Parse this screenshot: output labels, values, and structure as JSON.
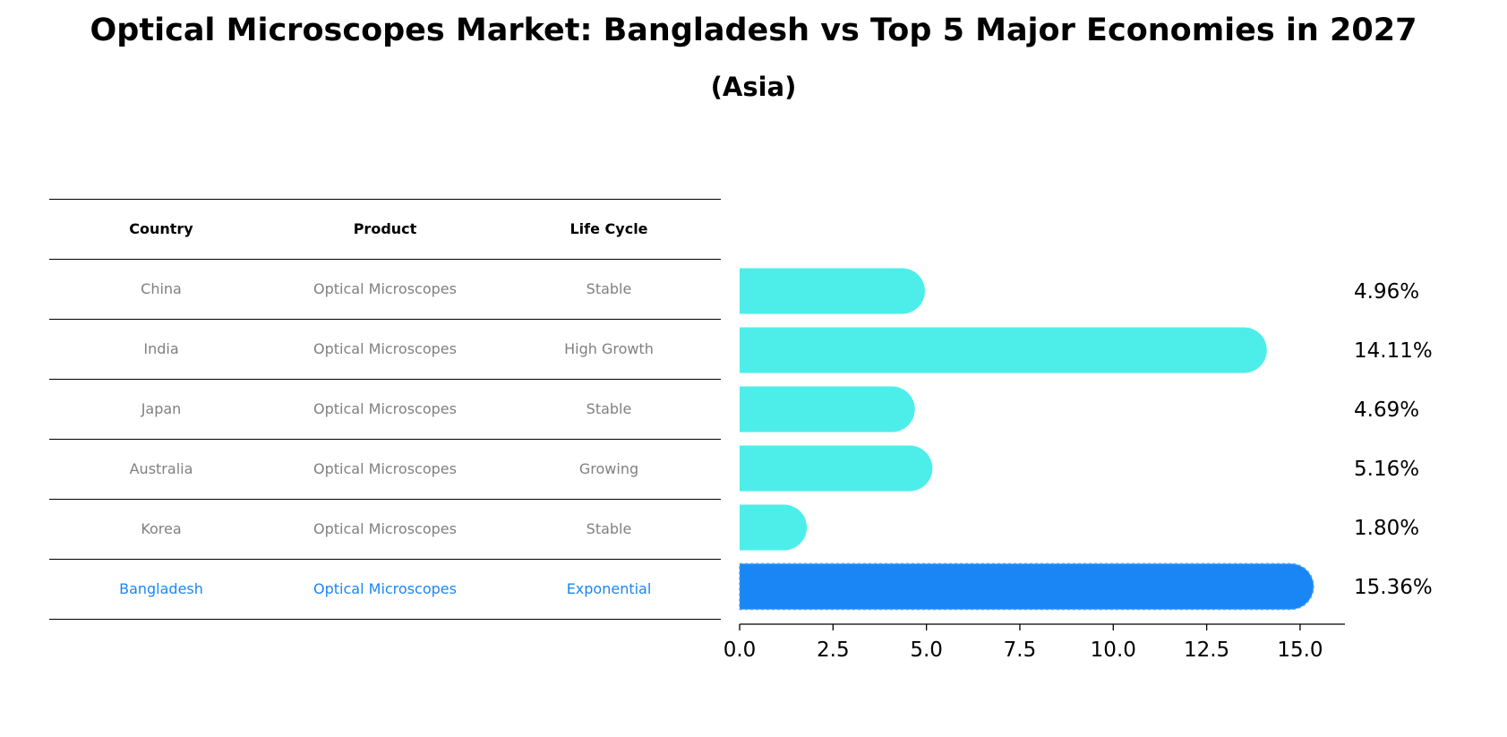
{
  "title": "Optical Microscopes Market: Bangladesh vs Top 5 Major Economies in 2027",
  "subtitle": "(Asia)",
  "table": {
    "headers": [
      "Country",
      "Product",
      "Life Cycle"
    ],
    "rows": [
      [
        "China",
        "Optical Microscopes",
        "Stable"
      ],
      [
        "India",
        "Optical Microscopes",
        "High Growth"
      ],
      [
        "Japan",
        "Optical Microscopes",
        "Stable"
      ],
      [
        "Australia",
        "Optical Microscopes",
        "Growing"
      ],
      [
        "Korea",
        "Optical Microscopes",
        "Stable"
      ],
      [
        "Bangladesh",
        "Optical Microscopes",
        "Exponential"
      ]
    ]
  },
  "colors": {
    "bar": "#4DEEEA",
    "highlight": "#1A86F5",
    "text_default": "#808080"
  },
  "chart_data": {
    "type": "bar",
    "orientation": "horizontal",
    "categories": [
      "China",
      "India",
      "Japan",
      "Australia",
      "Korea",
      "Bangladesh"
    ],
    "values": [
      4.96,
      14.11,
      4.69,
      5.16,
      1.8,
      15.36
    ],
    "value_labels": [
      "4.96%",
      "14.11%",
      "4.69%",
      "5.16%",
      "1.80%",
      "15.36%"
    ],
    "highlight_index": 5,
    "xlim": [
      0,
      16.2
    ],
    "xticks": [
      0,
      2.5,
      5,
      7.5,
      10,
      12.5,
      15
    ],
    "xtick_labels": [
      "0.0",
      "2.5",
      "5.0",
      "7.5",
      "10.0",
      "12.5",
      "15.0"
    ],
    "xlabel": "",
    "ylabel": "",
    "grid": false
  }
}
